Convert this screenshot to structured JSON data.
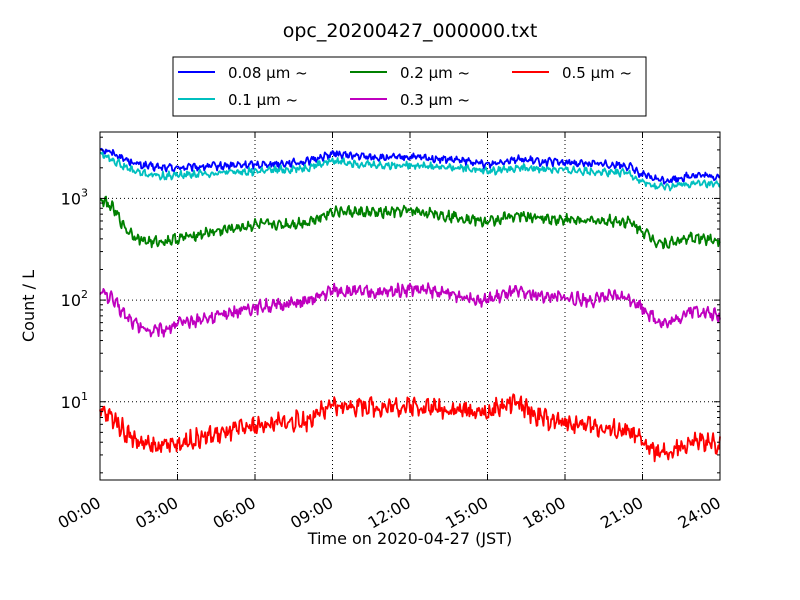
{
  "chart_data": {
    "type": "line",
    "title": "opc_20200427_000000.txt",
    "xlabel": "Time on 2020-04-27 (JST)",
    "ylabel": "Count / L",
    "yscale": "log",
    "xlim": [
      "2020-04-27 00:00",
      "2020-04-28 00:00"
    ],
    "ylim": [
      1.7,
      4500
    ],
    "grid": true,
    "legend_position": "top-center",
    "x_tick_labels": [
      "00:00",
      "03:00",
      "06:00",
      "09:00",
      "12:00",
      "15:00",
      "18:00",
      "21:00",
      "24:00"
    ],
    "y_tick_labels": [
      {
        "base": "10",
        "exp": "1"
      },
      {
        "base": "10",
        "exp": "2"
      },
      {
        "base": "10",
        "exp": "3"
      }
    ],
    "x": [
      "00:00",
      "00:30",
      "01:00",
      "01:30",
      "02:00",
      "02:30",
      "03:00",
      "04:00",
      "05:00",
      "06:00",
      "07:00",
      "08:00",
      "09:00",
      "10:00",
      "11:00",
      "12:00",
      "13:00",
      "14:00",
      "15:00",
      "16:00",
      "17:00",
      "18:00",
      "19:00",
      "20:00",
      "20:30",
      "21:00",
      "21:30",
      "22:00",
      "22:30",
      "23:00",
      "23:30",
      "24:00"
    ],
    "series": [
      {
        "name": "0.08 μm ~",
        "color": "#0000ff",
        "values": [
          3100,
          2800,
          2400,
          2150,
          2050,
          2000,
          2000,
          2050,
          2100,
          2150,
          2200,
          2300,
          2750,
          2600,
          2500,
          2550,
          2450,
          2350,
          2150,
          2450,
          2300,
          2250,
          2200,
          2150,
          2050,
          1700,
          1550,
          1500,
          1600,
          1700,
          1650,
          1620
        ]
      },
      {
        "name": "0.1 μm ~",
        "color": "#00bfbf",
        "values": [
          2800,
          2400,
          2000,
          1800,
          1700,
          1650,
          1700,
          1750,
          1800,
          1850,
          1900,
          2000,
          2350,
          2200,
          2100,
          2150,
          2050,
          2000,
          1850,
          2000,
          1950,
          1900,
          1850,
          1800,
          1750,
          1450,
          1300,
          1300,
          1350,
          1400,
          1380,
          1350
        ]
      },
      {
        "name": "0.2 μm ~",
        "color": "#008000",
        "values": [
          1000,
          800,
          500,
          400,
          370,
          380,
          400,
          450,
          500,
          550,
          550,
          580,
          750,
          730,
          720,
          760,
          700,
          650,
          580,
          680,
          640,
          620,
          600,
          600,
          580,
          480,
          380,
          360,
          390,
          410,
          400,
          390
        ]
      },
      {
        "name": "0.3 μm ~",
        "color": "#bf00bf",
        "values": [
          125,
          100,
          70,
          55,
          50,
          52,
          58,
          65,
          75,
          85,
          90,
          95,
          125,
          120,
          118,
          130,
          120,
          110,
          100,
          120,
          110,
          105,
          100,
          110,
          105,
          85,
          65,
          58,
          70,
          80,
          75,
          68
        ]
      },
      {
        "name": "0.5 μm ~",
        "color": "#ff0000",
        "values": [
          8,
          7,
          5,
          4,
          3.6,
          3.7,
          3.9,
          4.5,
          5.0,
          5.8,
          6.2,
          6.5,
          9.0,
          9.2,
          8.8,
          9.2,
          8.7,
          8.2,
          7.8,
          10.0,
          7.0,
          6.2,
          5.8,
          5.2,
          5.0,
          4.0,
          3.2,
          3.0,
          3.6,
          4.0,
          4.0,
          3.7
        ]
      }
    ]
  }
}
